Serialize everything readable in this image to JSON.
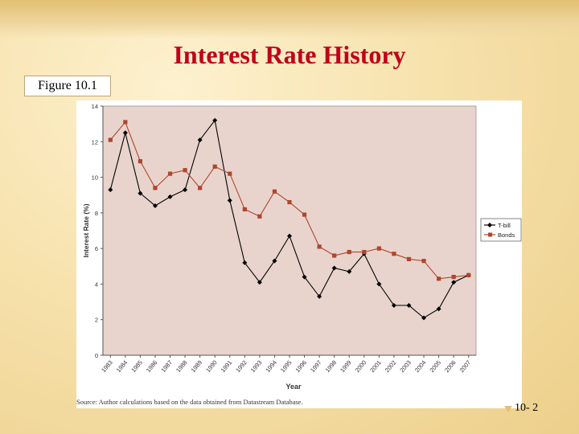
{
  "slide": {
    "title": "Interest Rate History",
    "figure_label": "Figure 10.1",
    "slide_number": "10- 2"
  },
  "chart_data": {
    "type": "line",
    "title": "",
    "xlabel": "Year",
    "ylabel": "Interest Rate (%)",
    "source": "Source:  Author calculations based on the data obtained from Datastream Database.",
    "ylim": [
      0,
      14
    ],
    "yticks": [
      "0",
      "2",
      "4",
      "6",
      "8",
      "10",
      "12",
      "14"
    ],
    "categories": [
      "1983",
      "1984",
      "1985",
      "1986",
      "1987",
      "1988",
      "1989",
      "1990",
      "1991",
      "1992",
      "1993",
      "1994",
      "1995",
      "1996",
      "1997",
      "1998",
      "1999",
      "2000",
      "2001",
      "2002",
      "2003",
      "2004",
      "2005",
      "2006",
      "2007"
    ],
    "grid": false,
    "legend": "right",
    "plot_background": "#e8d4cd",
    "series": [
      {
        "name": "T-bill",
        "color": "#000000",
        "marker": "diamond",
        "values": [
          9.3,
          12.5,
          9.1,
          8.4,
          8.9,
          9.3,
          12.1,
          13.2,
          8.7,
          5.2,
          4.1,
          5.3,
          6.7,
          4.4,
          3.3,
          4.9,
          4.7,
          5.7,
          4.0,
          2.8,
          2.8,
          2.1,
          2.6,
          4.1,
          4.5
        ]
      },
      {
        "name": "Bonds",
        "color": "#b0452e",
        "marker": "square",
        "values": [
          12.1,
          13.1,
          10.9,
          9.4,
          10.2,
          10.4,
          9.4,
          10.6,
          10.2,
          8.2,
          7.8,
          9.2,
          8.6,
          7.9,
          6.1,
          5.6,
          5.8,
          5.8,
          6.0,
          5.7,
          5.4,
          5.3,
          4.3,
          4.4,
          4.5
        ]
      }
    ]
  }
}
